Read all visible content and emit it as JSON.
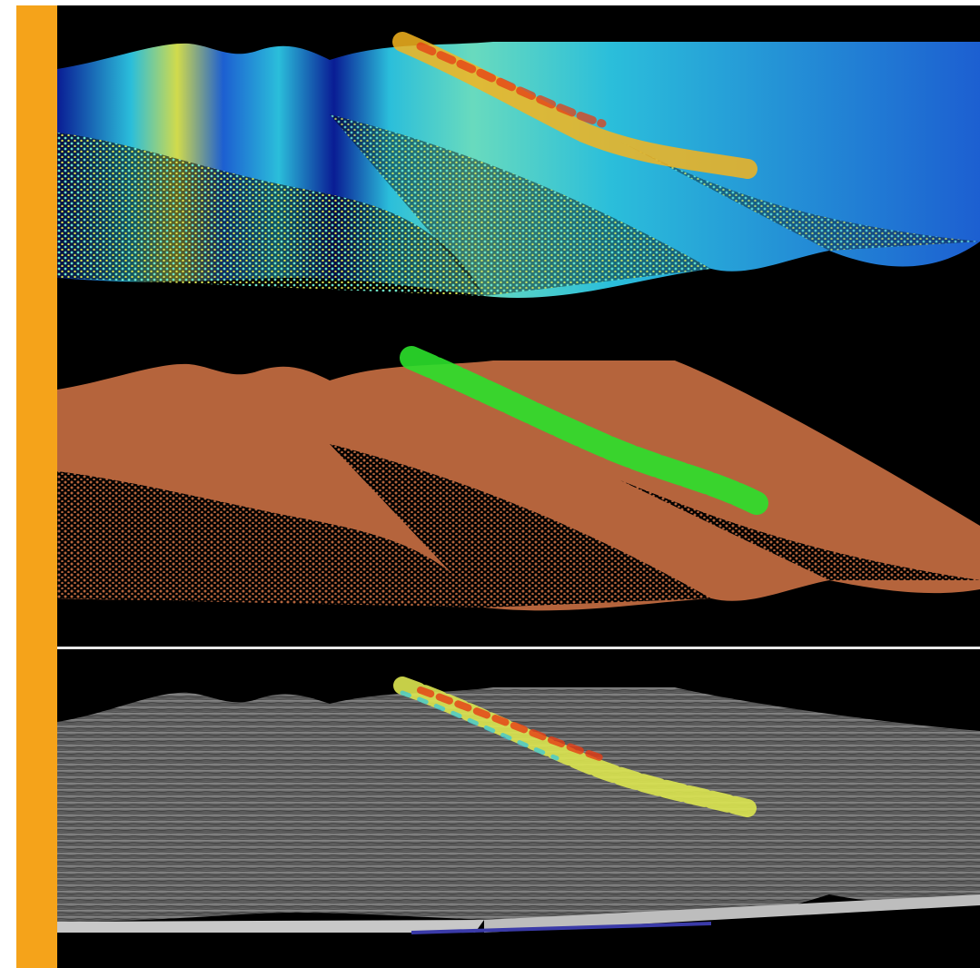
{
  "figure": {
    "panels": [
      {
        "id": "elevation-colored-point-cloud",
        "style": "elevation colormap"
      },
      {
        "id": "classified-point-cloud",
        "style": "ground vs vegetation"
      },
      {
        "id": "surface-mesh-with-vegetation-points",
        "style": "grey terrain mesh"
      }
    ]
  },
  "colors": {
    "accent_bar": "#F5A31A",
    "background": "#000000",
    "separator": "#E8E8E8",
    "ground_class": "#B5643C",
    "vegetation_class": "#2BE02B",
    "mesh": "#6E6E6E",
    "mesh_base": "#C8C8C8",
    "mesh_edge": "#3A3AA8",
    "colormap": [
      "#0A1E9C",
      "#1E64DC",
      "#2DC8E6",
      "#6EE6C8",
      "#DCE650",
      "#F5B41E",
      "#E63C14"
    ]
  }
}
